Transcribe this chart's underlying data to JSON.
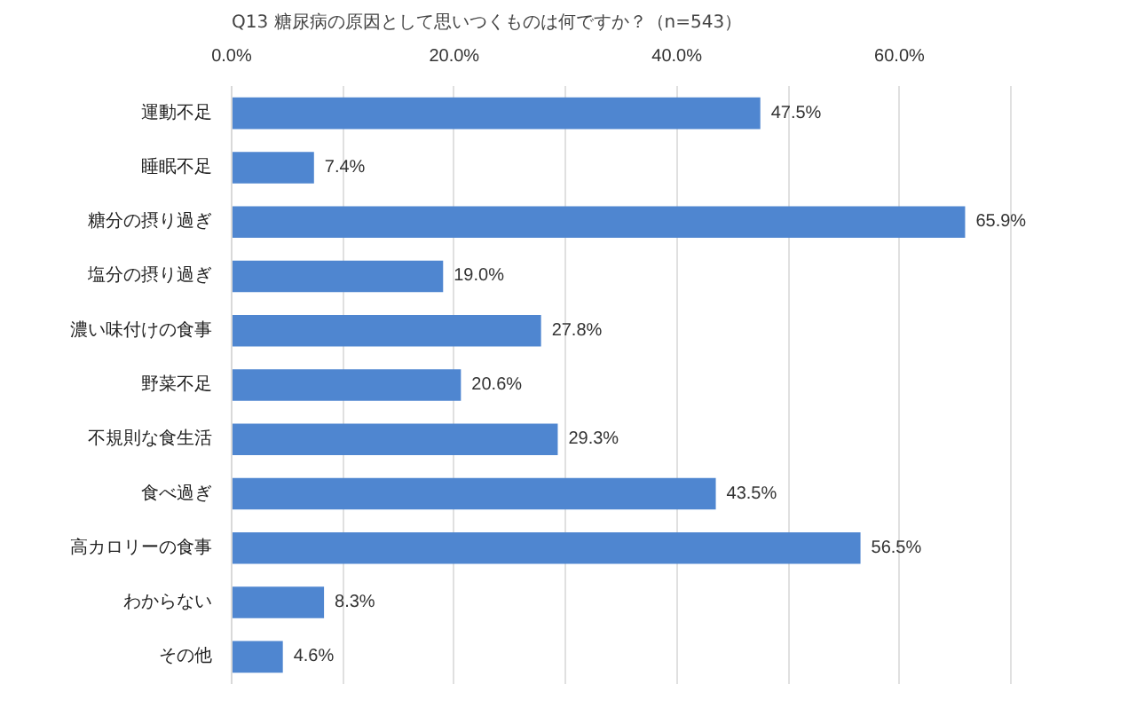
{
  "chart_data": {
    "type": "bar",
    "orientation": "horizontal",
    "title": "Q13 糖尿病の原因として思いつくものは何ですか？（n=543）",
    "categories": [
      "運動不足",
      "睡眠不足",
      "糖分の摂り過ぎ",
      "塩分の摂り過ぎ",
      "濃い味付けの食事",
      "野菜不足",
      "不規則な食生活",
      "食べ過ぎ",
      "高カロリーの食事",
      "わからない",
      "その他"
    ],
    "values": [
      47.5,
      7.4,
      65.9,
      19.0,
      27.8,
      20.6,
      29.3,
      43.5,
      56.5,
      8.3,
      4.6
    ],
    "value_labels": [
      "47.5%",
      "7.4%",
      "65.9%",
      "19.0%",
      "27.8%",
      "20.6%",
      "29.3%",
      "43.5%",
      "56.5%",
      "8.3%",
      "4.6%"
    ],
    "color": "#4f86d0",
    "xlim": [
      0,
      70
    ],
    "xticks": [
      {
        "value": 0,
        "label": "0.0%"
      },
      {
        "value": 10,
        "label": null
      },
      {
        "value": 20,
        "label": "20.0%"
      },
      {
        "value": 30,
        "label": null
      },
      {
        "value": 40,
        "label": "40.0%"
      },
      {
        "value": 50,
        "label": null
      },
      {
        "value": 60,
        "label": "60.0%"
      },
      {
        "value": 70,
        "label": null
      }
    ],
    "grid": "x"
  }
}
